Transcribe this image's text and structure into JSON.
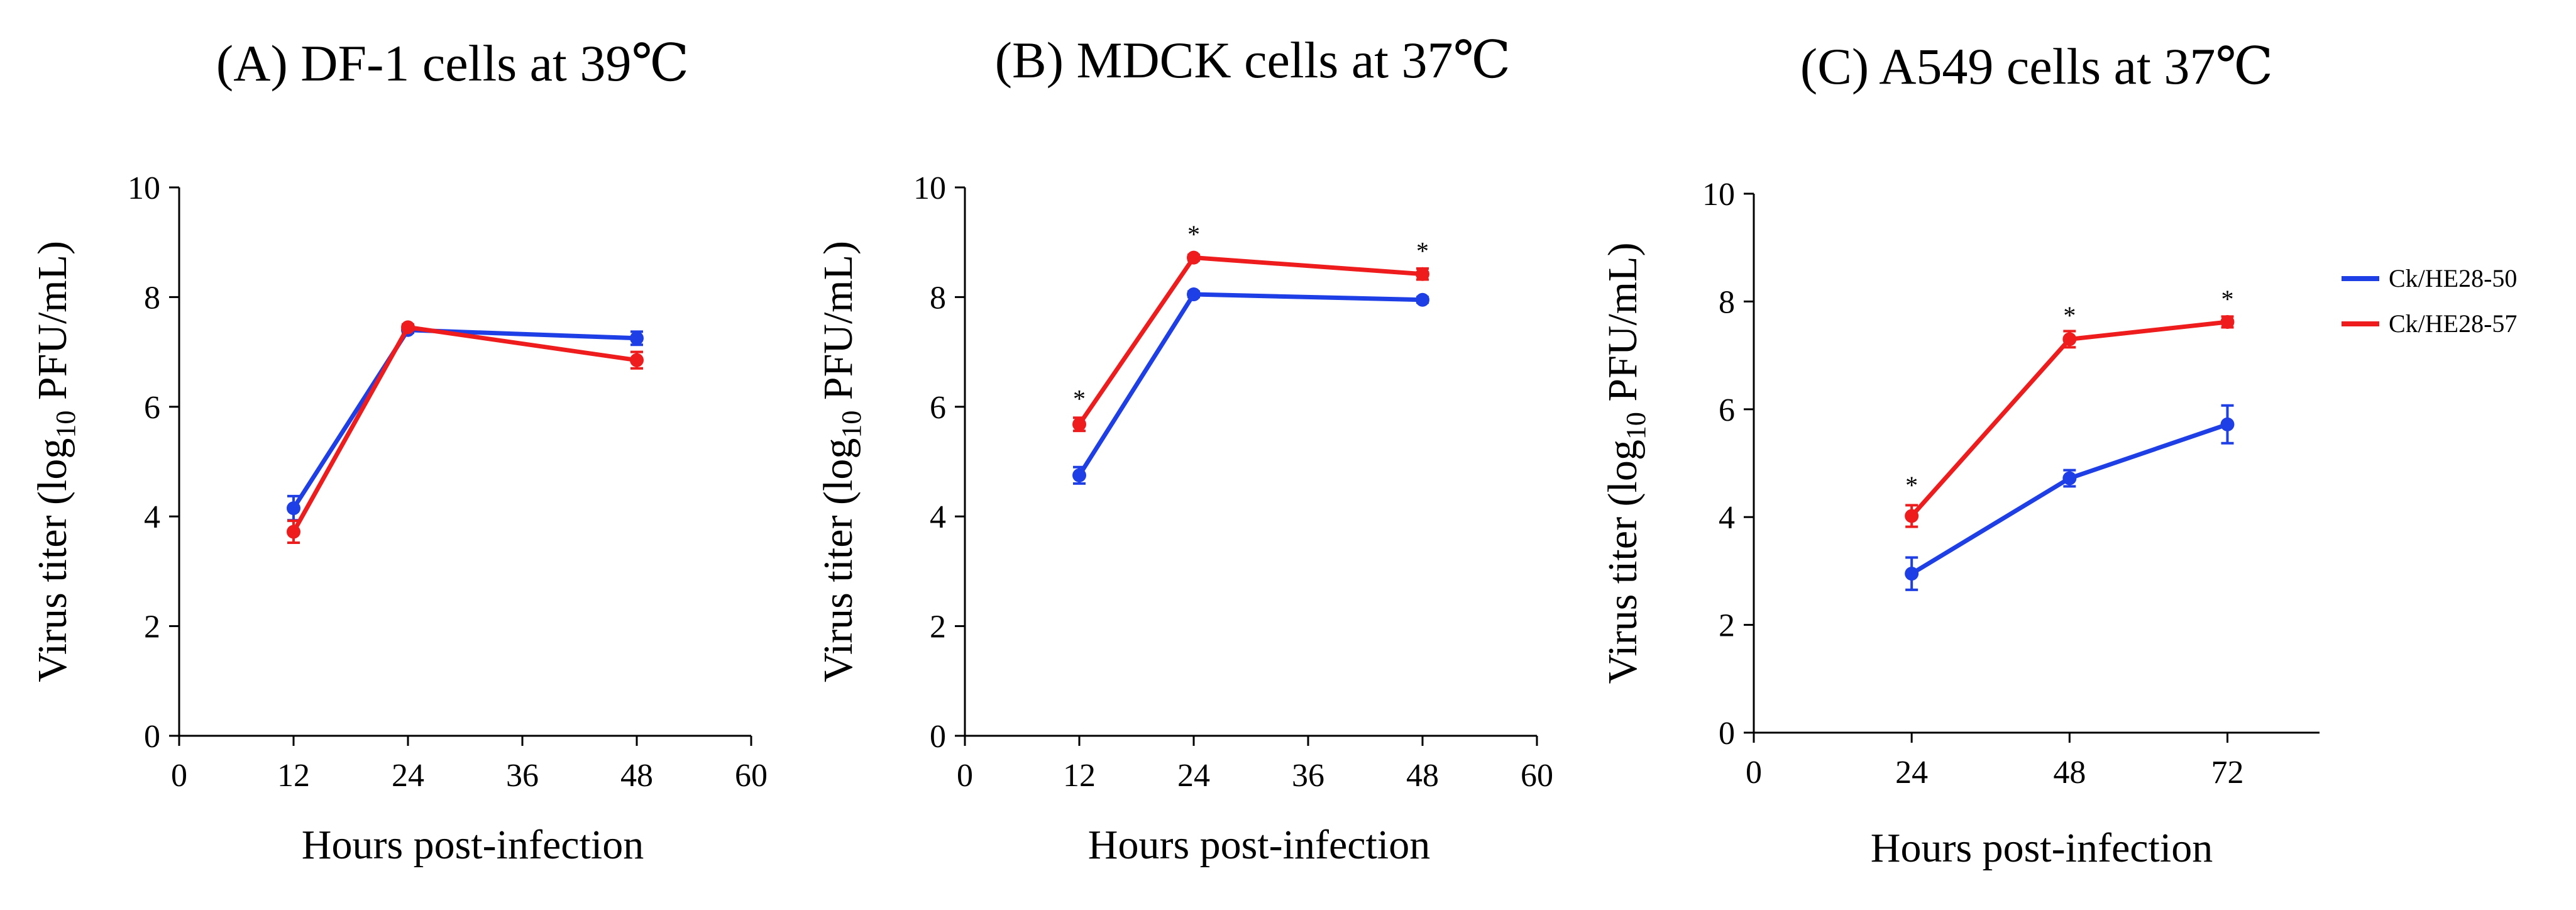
{
  "colors": {
    "ck50": "#1f3fe6",
    "ck57": "#ee1c1c",
    "axis": "#000000"
  },
  "legend": {
    "placement": "right",
    "entries": [
      {
        "label": "Ck/HE28-50",
        "color": "#1f3fe6"
      },
      {
        "label": "Ck/HE28-57",
        "color": "#ee1c1c"
      }
    ]
  },
  "chart_data": [
    {
      "type": "line",
      "title": "(A) DF-1 cells at 39℃",
      "xlabel": "Hours post-infection",
      "ylabel_prefix": "Virus titer (log",
      "ylabel_sub": "10",
      "ylabel_suffix": " PFU/mL)",
      "xlim": [
        0,
        60
      ],
      "ylim": [
        0,
        10
      ],
      "xticks": [
        0,
        12,
        24,
        36,
        48,
        60
      ],
      "yticks": [
        0,
        2,
        4,
        6,
        8,
        10
      ],
      "series": [
        {
          "name": "Ck/HE28-50",
          "color": "#1f3fe6",
          "x": [
            12,
            24,
            48
          ],
          "y": [
            4.15,
            7.4,
            7.25
          ],
          "err": [
            0.22,
            0.05,
            0.12
          ]
        },
        {
          "name": "Ck/HE28-57",
          "color": "#ee1c1c",
          "x": [
            12,
            24,
            48
          ],
          "y": [
            3.72,
            7.45,
            6.85
          ],
          "err": [
            0.2,
            0.05,
            0.15
          ]
        }
      ],
      "asterisks": []
    },
    {
      "type": "line",
      "title": "(B) MDCK cells at 37℃",
      "xlabel": "Hours post-infection",
      "ylabel_prefix": "Virus titer (log",
      "ylabel_sub": "10",
      "ylabel_suffix": " PFU/mL)",
      "xlim": [
        0,
        60
      ],
      "ylim": [
        0,
        10
      ],
      "xticks": [
        0,
        12,
        24,
        36,
        48,
        60
      ],
      "yticks": [
        0,
        2,
        4,
        6,
        8,
        10
      ],
      "series": [
        {
          "name": "Ck/HE28-50",
          "color": "#1f3fe6",
          "x": [
            12,
            24,
            48
          ],
          "y": [
            4.75,
            8.05,
            7.95
          ],
          "err": [
            0.15,
            0.05,
            0.05
          ]
        },
        {
          "name": "Ck/HE28-57",
          "color": "#ee1c1c",
          "x": [
            12,
            24,
            48
          ],
          "y": [
            5.68,
            8.72,
            8.42
          ],
          "err": [
            0.12,
            0.05,
            0.1
          ]
        }
      ],
      "asterisks": [
        {
          "x": 12,
          "y": 6.15,
          "text": "*"
        },
        {
          "x": 24,
          "y": 9.15,
          "text": "*"
        },
        {
          "x": 48,
          "y": 8.85,
          "text": "*"
        }
      ]
    },
    {
      "type": "line",
      "title": "(C) A549 cells at 37℃",
      "xlabel": "Hours post-infection",
      "ylabel_prefix": "Virus titer (log",
      "ylabel_sub": "10",
      "ylabel_suffix": " PFU/mL)",
      "xlim": [
        0,
        86
      ],
      "ylim": [
        0,
        10
      ],
      "xticks": [
        0,
        24,
        48,
        72
      ],
      "yticks": [
        0,
        2,
        4,
        6,
        8,
        10
      ],
      "series": [
        {
          "name": "Ck/HE28-50",
          "color": "#1f3fe6",
          "x": [
            24,
            48,
            72
          ],
          "y": [
            2.95,
            4.72,
            5.72
          ],
          "err": [
            0.3,
            0.15,
            0.35
          ]
        },
        {
          "name": "Ck/HE28-57",
          "color": "#ee1c1c",
          "x": [
            24,
            48,
            72
          ],
          "y": [
            4.02,
            7.3,
            7.62
          ],
          "err": [
            0.2,
            0.15,
            0.1
          ]
        }
      ],
      "asterisks": [
        {
          "x": 24,
          "y": 4.6,
          "text": "*"
        },
        {
          "x": 48,
          "y": 7.75,
          "text": "*"
        },
        {
          "x": 72,
          "y": 8.05,
          "text": "*"
        }
      ]
    }
  ]
}
